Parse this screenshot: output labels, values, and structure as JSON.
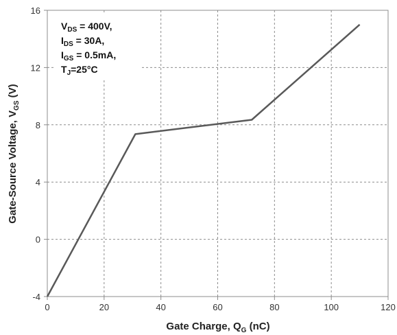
{
  "chart_data": {
    "type": "line",
    "xlabel": {
      "main": "Gate Charge, Q",
      "sub": "G",
      "tail": " (nC)"
    },
    "ylabel": {
      "main": "Gate-Source Voltage, V",
      "sub": "GS",
      "tail": " (V)"
    },
    "xlim": [
      0,
      120
    ],
    "ylim": [
      -4,
      16
    ],
    "x_ticks": [
      "0",
      "20",
      "40",
      "60",
      "80",
      "100",
      "120"
    ],
    "y_ticks": [
      "-4",
      "0",
      "4",
      "8",
      "12",
      "16"
    ],
    "grid": true,
    "series": [
      {
        "color": "#595959",
        "x": [
          0,
          31,
          72,
          110
        ],
        "y": [
          -4,
          7.35,
          8.35,
          15
        ]
      }
    ],
    "annotations": [
      {
        "main": "V",
        "sub": "DS",
        "tail": " = 400V,"
      },
      {
        "main": "I",
        "sub": "DS",
        "tail": " = 30A,"
      },
      {
        "main": "I",
        "sub": "GS",
        "tail": " = 0.5mA,"
      },
      {
        "main": "T",
        "sub": "J",
        "tail": "=25°C"
      }
    ]
  }
}
